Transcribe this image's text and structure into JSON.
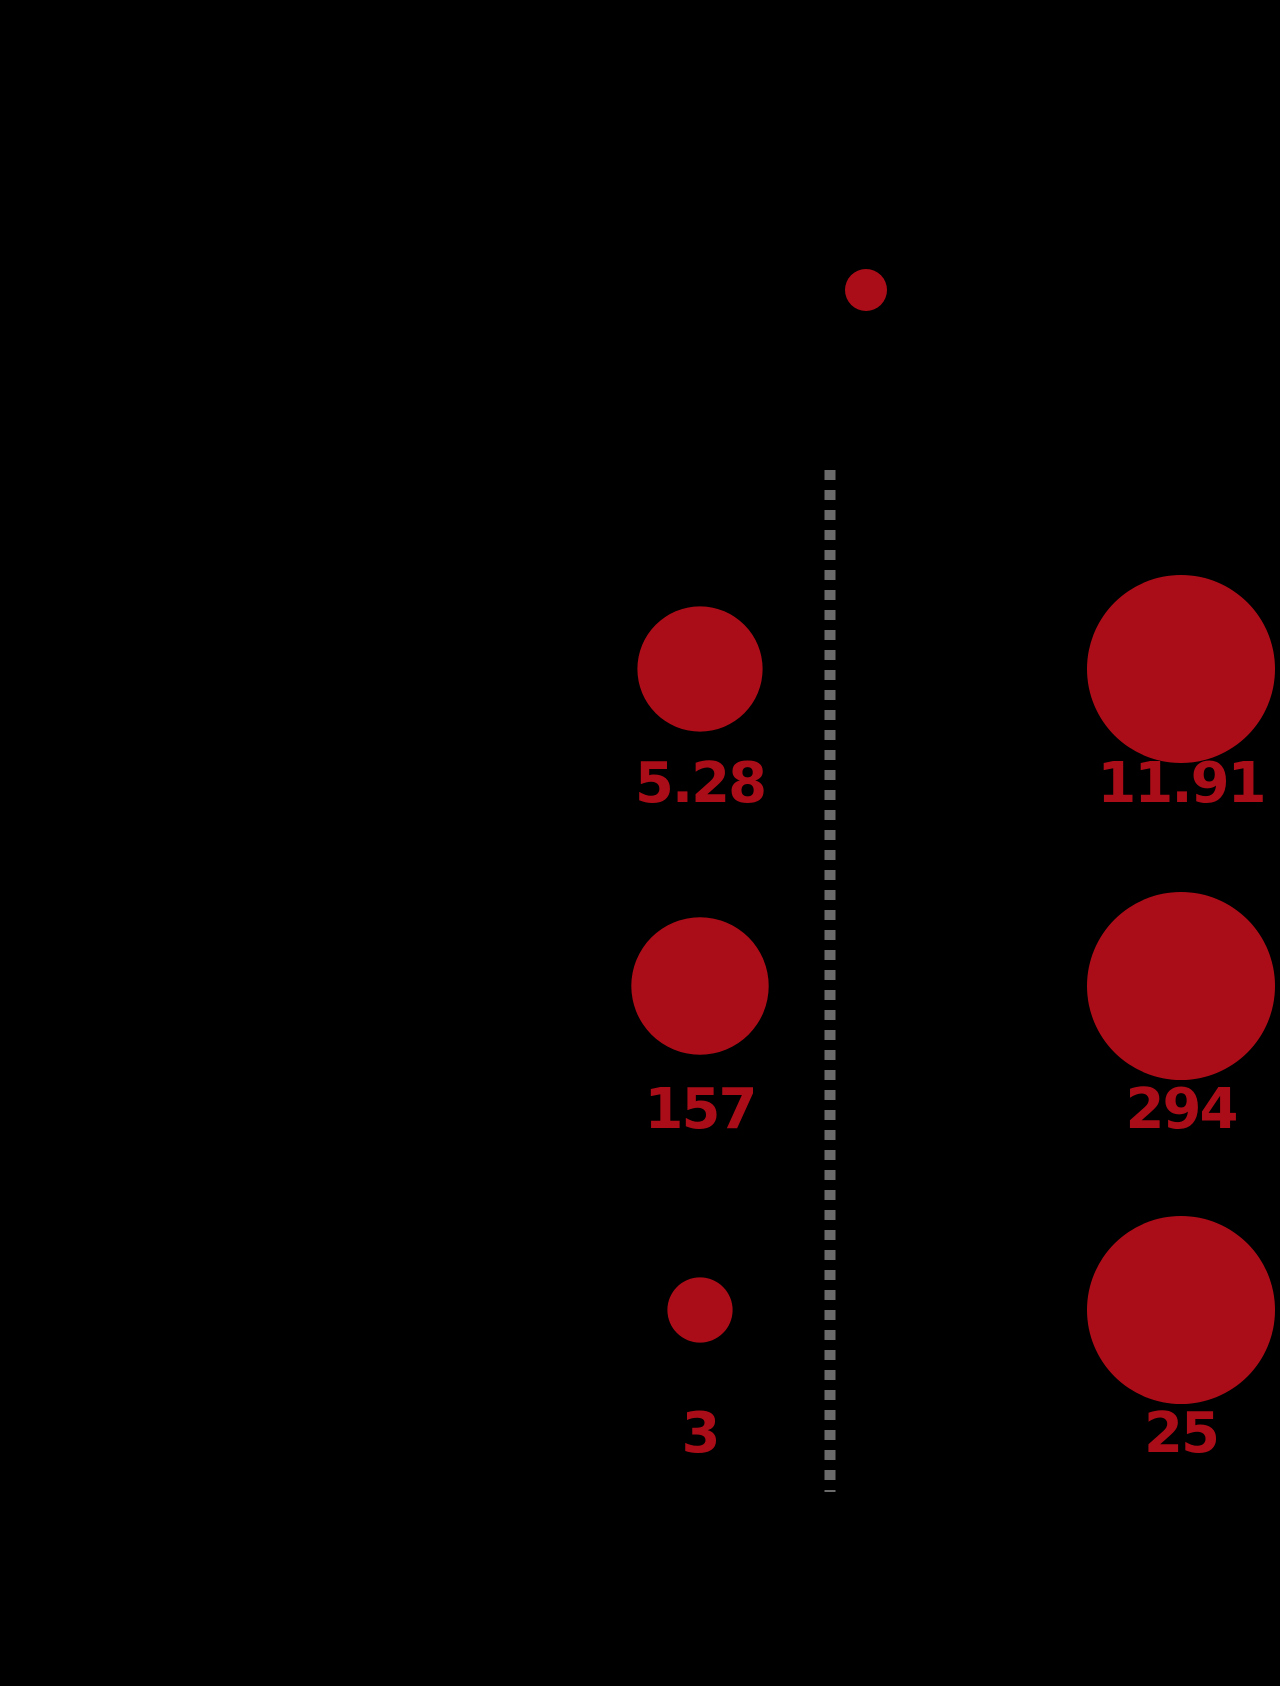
{
  "colors": {
    "background": "#000000",
    "bubble": "#ab0d18",
    "label": "#ab0d18",
    "divider": "#6b6b6b"
  },
  "chart_data": {
    "type": "bubble",
    "legend_marker": true,
    "columns": [
      "left",
      "right"
    ],
    "rows": [
      {
        "left": {
          "value": 5.28,
          "label": "5.28"
        },
        "right": {
          "value": 11.91,
          "label": "11.91"
        }
      },
      {
        "left": {
          "value": 157,
          "label": "157"
        },
        "right": {
          "value": 294,
          "label": "294"
        }
      },
      {
        "left": {
          "value": 3,
          "label": "3"
        },
        "right": {
          "value": 25,
          "label": "25"
        }
      }
    ]
  }
}
